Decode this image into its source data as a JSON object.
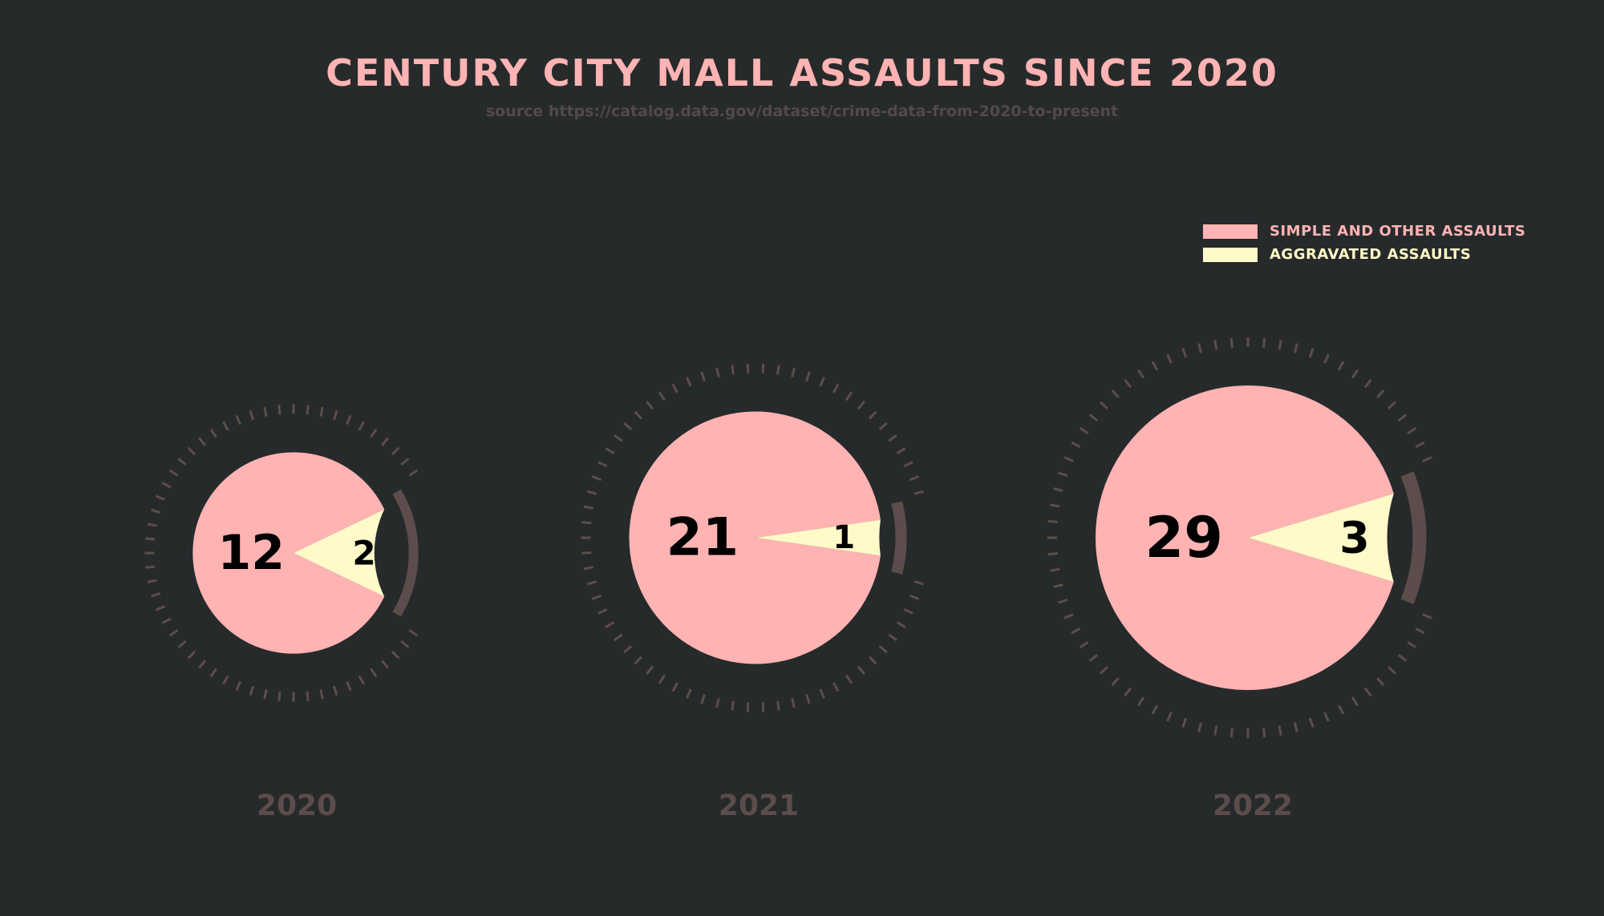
{
  "header": {
    "title": "CENTURY CITY MALL ASSAULTS SINCE 2020",
    "subtitle": "source https://catalog.data.gov/dataset/crime-data-from-2020-to-present"
  },
  "colors": {
    "background": "#272a2b",
    "simple": "#ffb3b3",
    "aggravated": "#fffac8",
    "ring": "#5c4d4c",
    "year_label": "#5c4d4c",
    "value_text": "#000000"
  },
  "chart_data": {
    "type": "pie",
    "title": "CENTURY CITY MALL ASSAULTS SINCE 2020",
    "subtitle": "source https://catalog.data.gov/dataset/crime-data-from-2020-to-present",
    "legend_position": "top-right",
    "series": [
      {
        "name": "SIMPLE AND OTHER ASSAULTS",
        "color": "#ffb3b3"
      },
      {
        "name": "AGGRAVATED ASSAULTS",
        "color": "#fffac8"
      }
    ],
    "categories": [
      "2020",
      "2021",
      "2022"
    ],
    "pies": [
      {
        "year": "2020",
        "simple": 12,
        "aggravated": 2
      },
      {
        "year": "2021",
        "simple": 21,
        "aggravated": 1
      },
      {
        "year": "2022",
        "simple": 29,
        "aggravated": 3
      }
    ]
  }
}
